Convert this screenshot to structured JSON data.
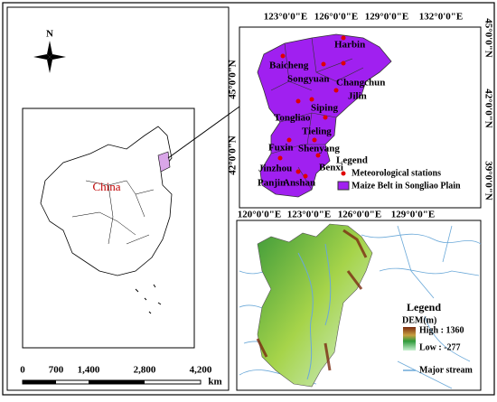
{
  "left_map": {
    "north": "N",
    "country_label": "China",
    "scale": {
      "labels": [
        "0",
        "700",
        "1,400",
        "2,800",
        "4,200"
      ],
      "unit": "km"
    }
  },
  "top_map": {
    "top_lon_labels": [
      "123°0'0\"E",
      "126°0'0\"E",
      "129°0'0\"E",
      "132°0'0\"E"
    ],
    "bottom_lon_labels": [
      "120°0'0\"E",
      "123°0'0\"E",
      "126°0'0\"E",
      "129°0'0\"E"
    ],
    "left_lat_labels": [
      "45°0'0\"N",
      "42°0'0\"N"
    ],
    "right_lat_labels": [
      "45°0'0\"N",
      "42°0'0\"N",
      "39°0'0\"N"
    ],
    "cities": [
      "Harbin",
      "Baicheng",
      "Songyuan",
      "Changchun",
      "Jilin",
      "Siping",
      "Tongliao",
      "Tieling",
      "Fuxin",
      "Shenyang",
      "Jinzhou",
      "Benxi",
      "Panjin",
      "Anshan"
    ],
    "legend": {
      "title": "Legend",
      "items": [
        "Meteorological stations",
        "Maize Belt in Songliao Plain"
      ]
    }
  },
  "bottom_map": {
    "legend": {
      "title": "Legend",
      "dem_title": "DEM(m)",
      "high": "High : 1360",
      "low": "Low : -277",
      "stream": "Major stream"
    }
  }
}
